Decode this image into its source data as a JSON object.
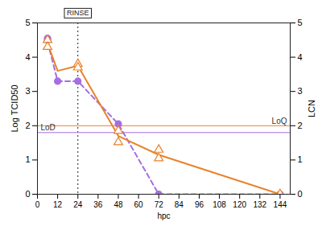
{
  "chart_data": {
    "type": "line",
    "x_label": "hpc",
    "y_label": "Log TCID50",
    "y2_label": "LCN",
    "xlim": [
      0,
      150
    ],
    "xticks": [
      0,
      12,
      24,
      36,
      48,
      60,
      72,
      84,
      96,
      108,
      120,
      132,
      144
    ],
    "ylim": [
      0,
      5
    ],
    "yticks": [
      0,
      1,
      2,
      3,
      4,
      5
    ],
    "y2lim": [
      0,
      5
    ],
    "y2ticks": [
      0,
      1,
      2,
      3,
      4,
      5
    ],
    "grid": false,
    "series": [
      {
        "color": "#a66ee0",
        "line_style": "dashed",
        "marker": "circle",
        "x": [
          6,
          12,
          24,
          48,
          72,
          144
        ],
        "values": [
          4.45,
          3.3,
          3.3,
          2.05,
          0,
          0
        ],
        "points": {
          "x": [
            6,
            6,
            12,
            24,
            48,
            72,
            144
          ],
          "values": [
            4.55,
            4.5,
            3.3,
            3.3,
            2.05,
            0,
            0
          ]
        }
      },
      {
        "color": "#e8822a",
        "line_style": "solid",
        "marker": "triangle",
        "axis": "y2",
        "x": [
          6,
          12,
          24,
          48,
          72,
          144
        ],
        "values": [
          4.4,
          3.6,
          3.75,
          1.7,
          1.15,
          0
        ],
        "points": {
          "x": [
            6,
            6,
            24,
            24,
            48,
            48,
            72,
            72,
            144
          ],
          "values": [
            4.5,
            4.3,
            3.8,
            3.7,
            1.85,
            1.52,
            1.3,
            1.05,
            0
          ]
        }
      }
    ],
    "reference_lines": [
      {
        "y": 2,
        "label": "LoQ",
        "color": "#e8822a",
        "axis": "y2"
      },
      {
        "y": 1.8,
        "label": "LoD",
        "color": "#a66ee0"
      }
    ],
    "annotations": [
      {
        "x": 24,
        "label": "RINSE",
        "line_style": "dotted"
      }
    ]
  }
}
